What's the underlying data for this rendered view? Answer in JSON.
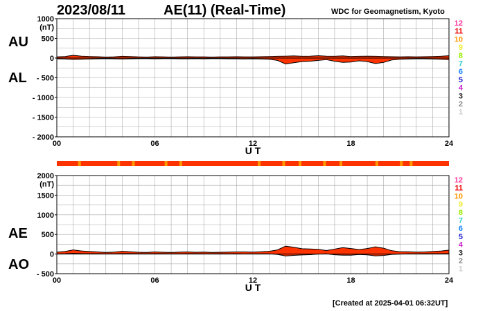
{
  "header": {
    "date": "2023/08/11",
    "title": "AE(11) (Real-Time)",
    "source": "WDC for Geomagnetism, Kyoto"
  },
  "footer": {
    "created": "[Created at 2025-04-01 06:32UT]"
  },
  "legend": {
    "labels": [
      "12",
      "11",
      "10",
      "9",
      "8",
      "7",
      "6",
      "5",
      "4",
      "3",
      "2",
      "1"
    ],
    "colors": [
      "#ff3399",
      "#ee0000",
      "#ff9900",
      "#eeee33",
      "#99ee00",
      "#33cccc",
      "#2288ff",
      "#2222cc",
      "#cc22cc",
      "#222222",
      "#888888",
      "#cccccc"
    ]
  },
  "colors": {
    "fill_main": "#ff3300",
    "fill_alt": "#ff9900",
    "curve": "#000000",
    "grid": "#aaaaaa",
    "strip": "#ff3300"
  },
  "chart_data": [
    {
      "type": "area",
      "panel": "AU/AL",
      "labels": [
        "AU",
        "AL"
      ],
      "y_unit": "(nT)",
      "ylim": [
        -2000,
        1000
      ],
      "yticks": [
        1000,
        500,
        0,
        -500,
        -1000,
        -1500,
        -2000
      ],
      "ytick_labels": [
        "1000",
        "500",
        "0",
        "- 500",
        "- 1000",
        "- 1500",
        "- 2000"
      ],
      "xlim": [
        0,
        24
      ],
      "xticks": [
        0,
        6,
        12,
        18,
        24
      ],
      "xtick_labels": [
        "00",
        "06",
        "12",
        "18",
        "24"
      ],
      "xlabel": "U T",
      "series": [
        {
          "name": "AU",
          "x": [
            0,
            0.5,
            1,
            1.5,
            2,
            2.5,
            3,
            3.5,
            4,
            4.5,
            5,
            5.5,
            6,
            6.5,
            7,
            7.5,
            8,
            8.5,
            9,
            9.5,
            10,
            10.5,
            11,
            11.5,
            12,
            12.5,
            13,
            13.5,
            14,
            14.5,
            15,
            15.5,
            16,
            16.5,
            17,
            17.5,
            18,
            18.5,
            19,
            19.5,
            20,
            20.5,
            21,
            21.5,
            22,
            22.5,
            23,
            23.5,
            24
          ],
          "values": [
            30,
            40,
            70,
            50,
            40,
            35,
            25,
            30,
            45,
            40,
            30,
            25,
            35,
            30,
            25,
            30,
            35,
            30,
            30,
            25,
            30,
            30,
            35,
            30,
            30,
            35,
            40,
            45,
            50,
            55,
            45,
            50,
            60,
            50,
            45,
            55,
            40,
            45,
            50,
            45,
            40,
            35,
            30,
            35,
            30,
            35,
            40,
            45,
            60
          ]
        },
        {
          "name": "AL",
          "x": [
            0,
            0.5,
            1,
            1.5,
            2,
            2.5,
            3,
            3.5,
            4,
            4.5,
            5,
            5.5,
            6,
            6.5,
            7,
            7.5,
            8,
            8.5,
            9,
            9.5,
            10,
            10.5,
            11,
            11.5,
            12,
            12.5,
            13,
            13.5,
            14,
            14.5,
            15,
            15.5,
            16,
            16.5,
            17,
            17.5,
            18,
            18.5,
            19,
            19.5,
            20,
            20.5,
            21,
            21.5,
            22,
            22.5,
            23,
            23.5,
            24
          ],
          "values": [
            -20,
            -25,
            -35,
            -30,
            -25,
            -20,
            -15,
            -20,
            -25,
            -20,
            -15,
            -15,
            -20,
            -15,
            -15,
            -20,
            -20,
            -15,
            -20,
            -15,
            -15,
            -20,
            -20,
            -25,
            -20,
            -25,
            -30,
            -60,
            -150,
            -120,
            -90,
            -80,
            -60,
            -40,
            -80,
            -110,
            -100,
            -70,
            -90,
            -140,
            -110,
            -50,
            -30,
            -25,
            -20,
            -20,
            -25,
            -30,
            -40
          ]
        }
      ]
    },
    {
      "type": "area",
      "panel": "AE/AO",
      "labels": [
        "AE",
        "AO"
      ],
      "y_unit": "(nT)",
      "ylim": [
        -500,
        2000
      ],
      "yticks": [
        2000,
        1500,
        1000,
        500,
        0,
        -500
      ],
      "ytick_labels": [
        "2000",
        "1500",
        "1000",
        "500",
        "0",
        "- 500"
      ],
      "xlim": [
        0,
        24
      ],
      "xticks": [
        0,
        6,
        12,
        18,
        24
      ],
      "xtick_labels": [
        "00",
        "06",
        "12",
        "18",
        "24"
      ],
      "xlabel": "U T",
      "series": [
        {
          "name": "AE",
          "x": [
            0,
            0.5,
            1,
            1.5,
            2,
            2.5,
            3,
            3.5,
            4,
            4.5,
            5,
            5.5,
            6,
            6.5,
            7,
            7.5,
            8,
            8.5,
            9,
            9.5,
            10,
            10.5,
            11,
            11.5,
            12,
            12.5,
            13,
            13.5,
            14,
            14.5,
            15,
            15.5,
            16,
            16.5,
            17,
            17.5,
            18,
            18.5,
            19,
            19.5,
            20,
            20.5,
            21,
            21.5,
            22,
            22.5,
            23,
            23.5,
            24
          ],
          "values": [
            50,
            65,
            105,
            80,
            65,
            55,
            40,
            50,
            70,
            60,
            45,
            40,
            55,
            45,
            40,
            50,
            55,
            45,
            50,
            40,
            45,
            50,
            55,
            55,
            50,
            60,
            70,
            105,
            200,
            175,
            135,
            130,
            120,
            90,
            125,
            165,
            140,
            115,
            140,
            185,
            150,
            85,
            60,
            60,
            50,
            55,
            65,
            75,
            100
          ]
        },
        {
          "name": "AO",
          "x": [
            0,
            0.5,
            1,
            1.5,
            2,
            2.5,
            3,
            3.5,
            4,
            4.5,
            5,
            5.5,
            6,
            6.5,
            7,
            7.5,
            8,
            8.5,
            9,
            9.5,
            10,
            10.5,
            11,
            11.5,
            12,
            12.5,
            13,
            13.5,
            14,
            14.5,
            15,
            15.5,
            16,
            16.5,
            17,
            17.5,
            18,
            18.5,
            19,
            19.5,
            20,
            20.5,
            21,
            21.5,
            22,
            22.5,
            23,
            23.5,
            24
          ],
          "values": [
            5,
            8,
            18,
            10,
            8,
            8,
            5,
            5,
            10,
            10,
            8,
            5,
            8,
            8,
            5,
            5,
            8,
            8,
            5,
            5,
            8,
            5,
            8,
            3,
            5,
            5,
            5,
            -8,
            -50,
            -33,
            -23,
            -15,
            0,
            5,
            -18,
            -28,
            -30,
            -13,
            -20,
            -48,
            -35,
            -8,
            0,
            5,
            5,
            8,
            8,
            8,
            10
          ]
        }
      ]
    }
  ]
}
